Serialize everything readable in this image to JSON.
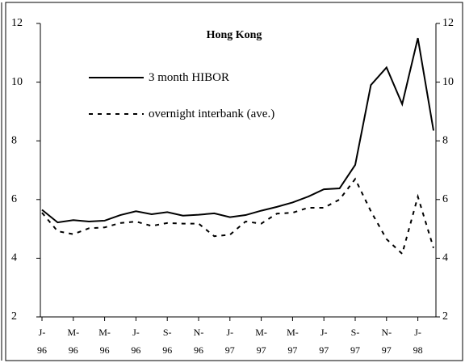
{
  "chart_data": {
    "type": "line",
    "title": "Hong Kong",
    "categories": [
      [
        "J-",
        "96"
      ],
      null,
      [
        "M-",
        "96"
      ],
      null,
      [
        "M-",
        "96"
      ],
      null,
      [
        "J-",
        "96"
      ],
      null,
      [
        "S-",
        "96"
      ],
      null,
      [
        "N-",
        "96"
      ],
      null,
      [
        "J-",
        "97"
      ],
      null,
      [
        "M-",
        "97"
      ],
      null,
      [
        "M-",
        "97"
      ],
      null,
      [
        "J-",
        "97"
      ],
      null,
      [
        "S-",
        "97"
      ],
      null,
      [
        "N-",
        "97"
      ],
      null,
      [
        "J-",
        "98"
      ],
      null
    ],
    "series": [
      {
        "name": "3 month HIBOR",
        "color": "#000000",
        "dash": false,
        "values": [
          5.65,
          5.22,
          5.3,
          5.25,
          5.28,
          5.47,
          5.6,
          5.5,
          5.57,
          5.45,
          5.48,
          5.53,
          5.4,
          5.47,
          5.62,
          5.75,
          5.9,
          6.1,
          6.35,
          6.38,
          7.18,
          9.9,
          10.5,
          9.25,
          11.5,
          8.35
        ]
      },
      {
        "name": "overnight interbank (ave.)",
        "color": "#000000",
        "dash": true,
        "values": [
          5.55,
          4.92,
          4.82,
          5.02,
          5.05,
          5.2,
          5.25,
          5.1,
          5.2,
          5.18,
          5.18,
          4.75,
          4.8,
          5.25,
          5.18,
          5.52,
          5.55,
          5.72,
          5.72,
          6.0,
          6.7,
          5.6,
          4.65,
          4.15,
          6.1,
          4.35
        ]
      }
    ],
    "ylim": [
      2,
      12
    ],
    "yticks": [
      2,
      4,
      6,
      8,
      10,
      12
    ],
    "y2lim": [
      2,
      12
    ],
    "y2ticks": [
      2,
      4,
      6,
      8,
      10,
      12
    ]
  }
}
